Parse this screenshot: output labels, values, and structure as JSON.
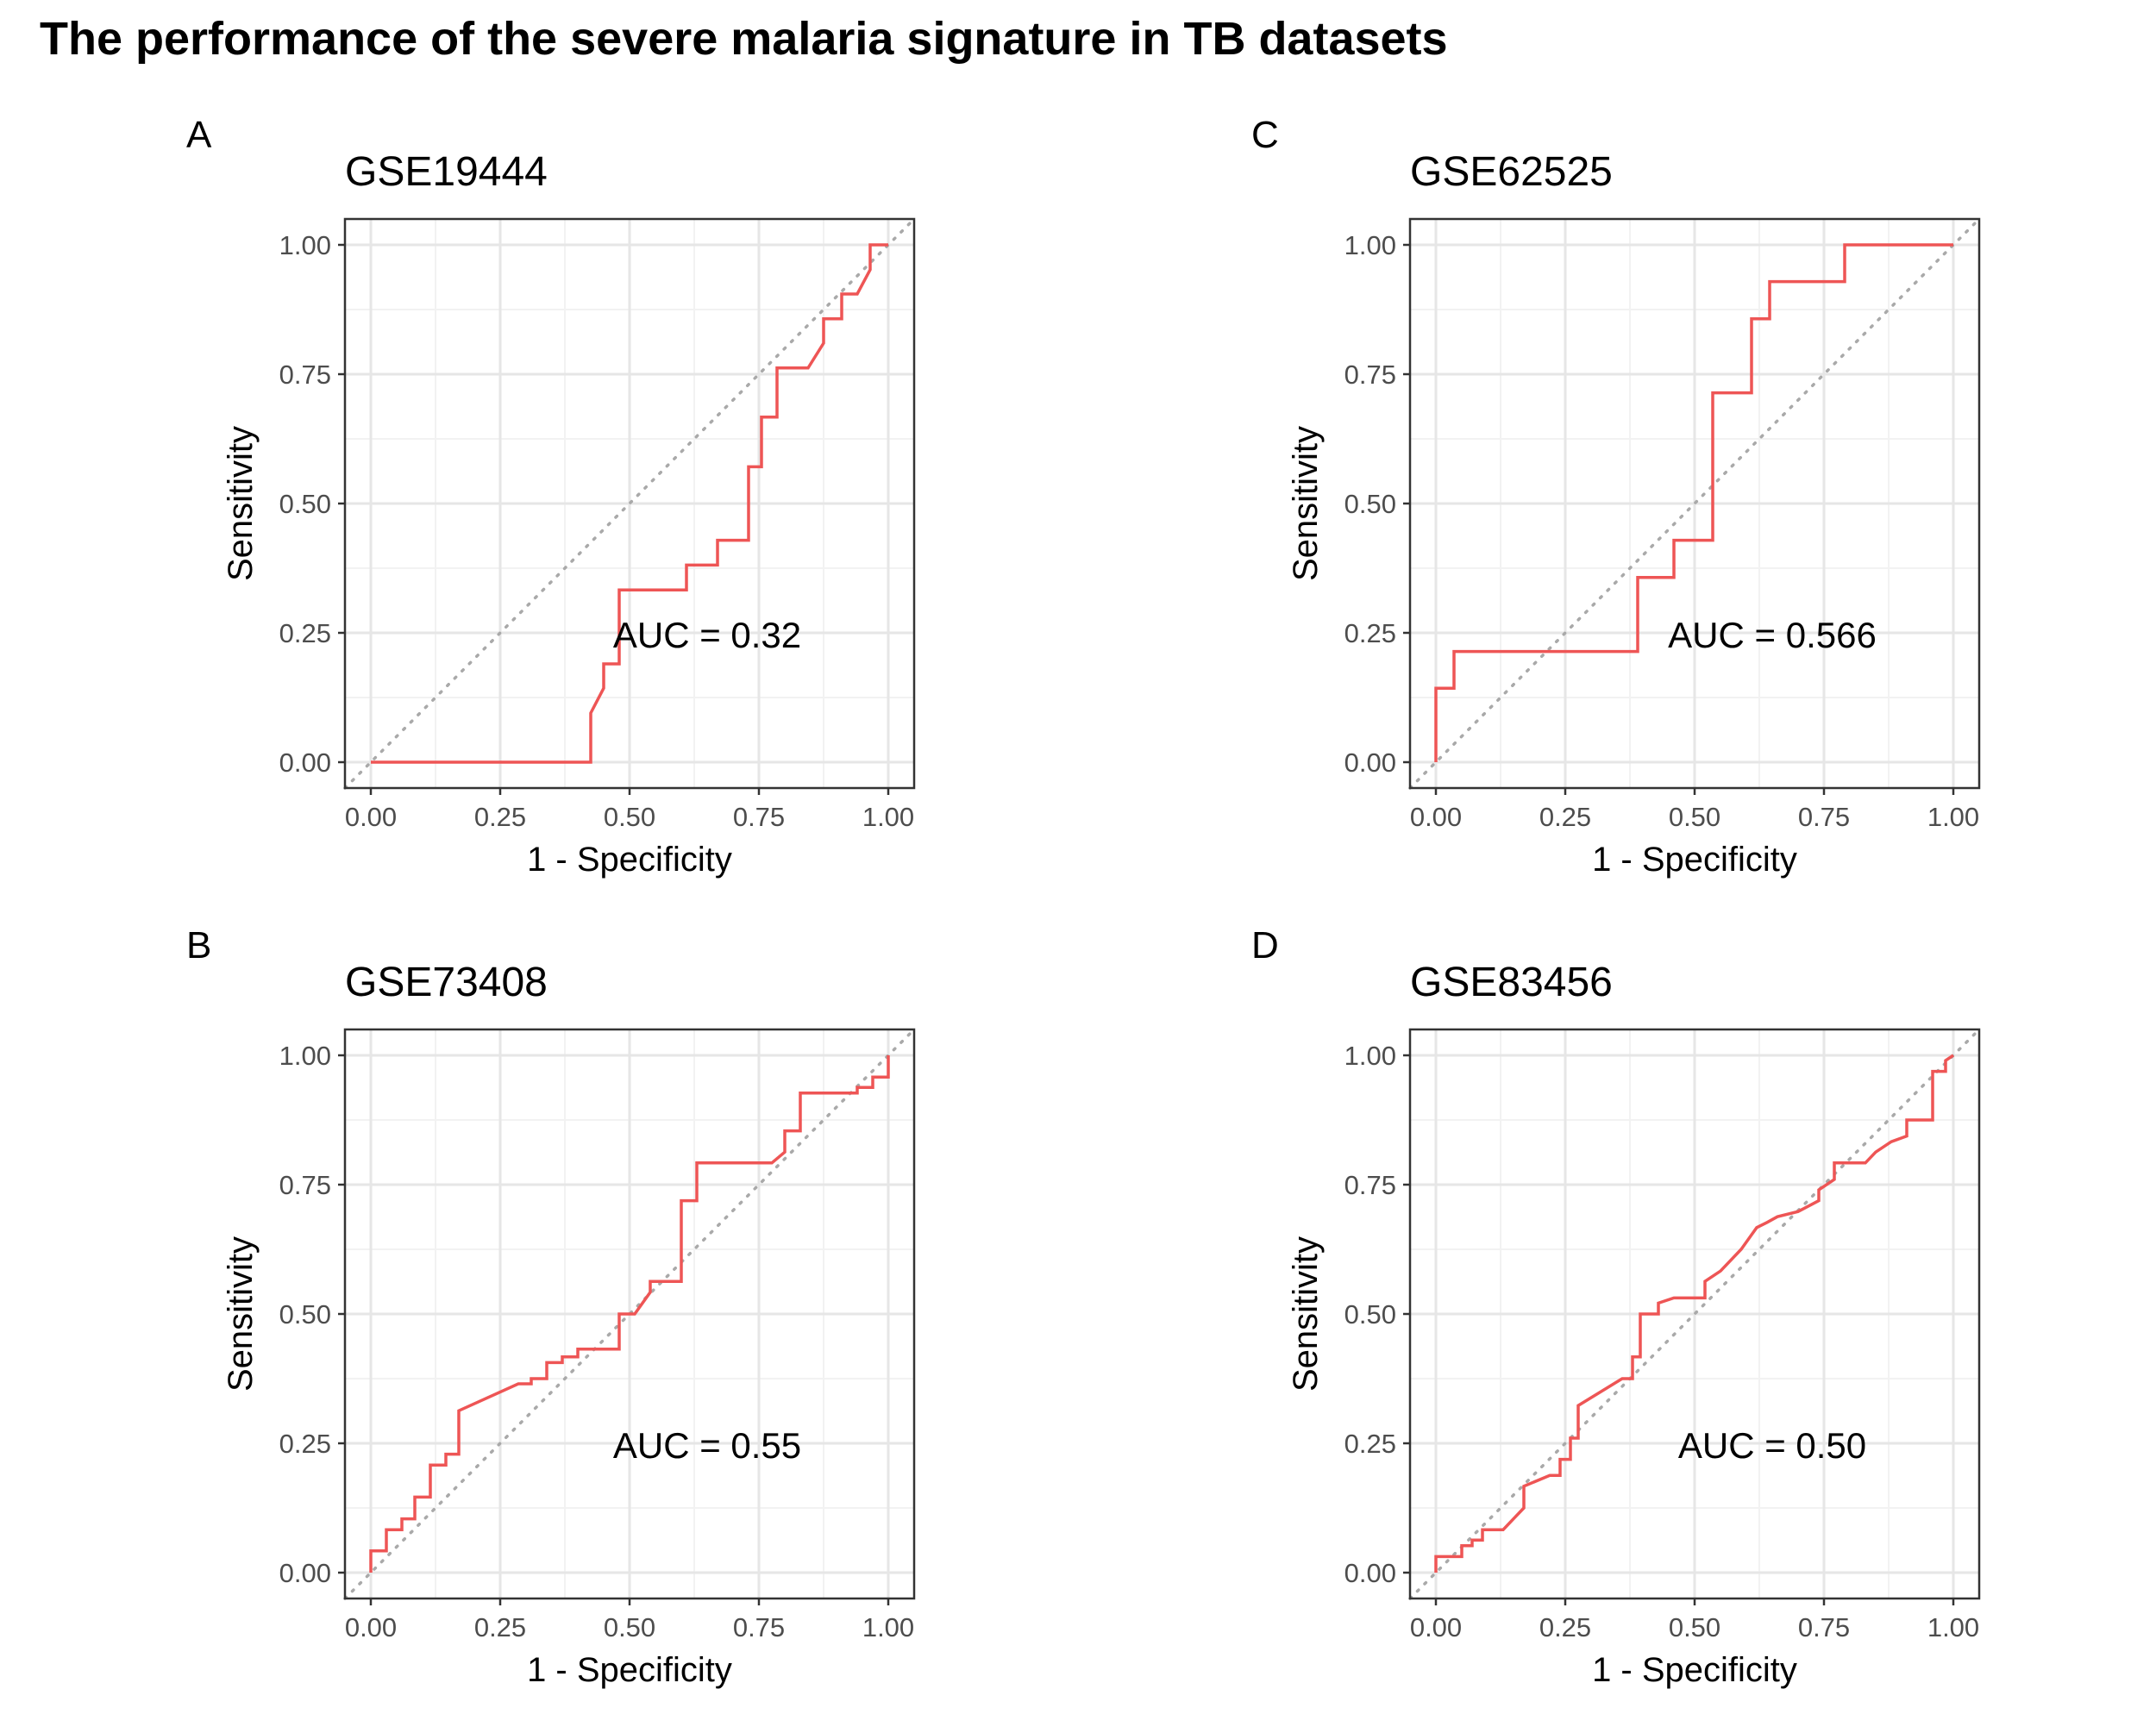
{
  "figure": {
    "title": "The performance of the severe malaria signature in TB datasets"
  },
  "colors": {
    "roc_line": "#ee5555",
    "diagonal": "#a9a9a9",
    "grid_major": "#e6e6e6",
    "grid_minor": "#f2f2f2",
    "panel_border": "#333333"
  },
  "chart_data": [
    {
      "panel": "A",
      "title": "GSE19444",
      "type": "line",
      "xlabel": "1 - Specificity",
      "ylabel": "Sensitivity",
      "xlim": [
        0,
        1
      ],
      "ylim": [
        0,
        1
      ],
      "xticks": [
        "0.00",
        "0.25",
        "0.50",
        "0.75",
        "1.00"
      ],
      "yticks": [
        "0.00",
        "0.25",
        "0.50",
        "0.75",
        "1.00"
      ],
      "grid": true,
      "reference_line": "diagonal",
      "annotation": "AUC = 0.32",
      "points": [
        [
          0,
          0
        ],
        [
          0.425,
          0
        ],
        [
          0.425,
          0.095
        ],
        [
          0.45,
          0.143
        ],
        [
          0.45,
          0.19
        ],
        [
          0.48,
          0.19
        ],
        [
          0.48,
          0.333
        ],
        [
          0.61,
          0.333
        ],
        [
          0.61,
          0.381
        ],
        [
          0.67,
          0.381
        ],
        [
          0.67,
          0.429
        ],
        [
          0.73,
          0.429
        ],
        [
          0.73,
          0.571
        ],
        [
          0.755,
          0.571
        ],
        [
          0.755,
          0.667
        ],
        [
          0.785,
          0.667
        ],
        [
          0.785,
          0.762
        ],
        [
          0.845,
          0.762
        ],
        [
          0.875,
          0.81
        ],
        [
          0.875,
          0.857
        ],
        [
          0.91,
          0.857
        ],
        [
          0.91,
          0.905
        ],
        [
          0.94,
          0.905
        ],
        [
          0.965,
          0.952
        ],
        [
          0.965,
          1.0
        ],
        [
          1.0,
          1.0
        ]
      ]
    },
    {
      "panel": "C",
      "title": "GSE62525",
      "type": "line",
      "xlabel": "1 - Specificity",
      "ylabel": "Sensitivity",
      "xlim": [
        0,
        1
      ],
      "ylim": [
        0,
        1
      ],
      "xticks": [
        "0.00",
        "0.25",
        "0.50",
        "0.75",
        "1.00"
      ],
      "yticks": [
        "0.00",
        "0.25",
        "0.50",
        "0.75",
        "1.00"
      ],
      "grid": true,
      "reference_line": "diagonal",
      "annotation": "AUC = 0.566",
      "points": [
        [
          0,
          0
        ],
        [
          0,
          0.143
        ],
        [
          0.035,
          0.143
        ],
        [
          0.035,
          0.214
        ],
        [
          0.39,
          0.214
        ],
        [
          0.39,
          0.357
        ],
        [
          0.46,
          0.357
        ],
        [
          0.46,
          0.429
        ],
        [
          0.535,
          0.429
        ],
        [
          0.535,
          0.714
        ],
        [
          0.61,
          0.714
        ],
        [
          0.61,
          0.857
        ],
        [
          0.645,
          0.857
        ],
        [
          0.645,
          0.929
        ],
        [
          0.79,
          0.929
        ],
        [
          0.79,
          1.0
        ],
        [
          1.0,
          1.0
        ]
      ]
    },
    {
      "panel": "B",
      "title": "GSE73408",
      "type": "line",
      "xlabel": "1 - Specificity",
      "ylabel": "Sensitivity",
      "xlim": [
        0,
        1
      ],
      "ylim": [
        0,
        1
      ],
      "xticks": [
        "0.00",
        "0.25",
        "0.50",
        "0.75",
        "1.00"
      ],
      "yticks": [
        "0.00",
        "0.25",
        "0.50",
        "0.75",
        "1.00"
      ],
      "grid": true,
      "reference_line": "diagonal",
      "annotation": "AUC = 0.55",
      "points": [
        [
          0,
          0
        ],
        [
          0,
          0.042
        ],
        [
          0.03,
          0.042
        ],
        [
          0.03,
          0.083
        ],
        [
          0.06,
          0.083
        ],
        [
          0.06,
          0.104
        ],
        [
          0.085,
          0.104
        ],
        [
          0.085,
          0.146
        ],
        [
          0.115,
          0.146
        ],
        [
          0.115,
          0.208
        ],
        [
          0.145,
          0.208
        ],
        [
          0.145,
          0.229
        ],
        [
          0.17,
          0.229
        ],
        [
          0.17,
          0.313
        ],
        [
          0.285,
          0.365
        ],
        [
          0.31,
          0.365
        ],
        [
          0.31,
          0.375
        ],
        [
          0.34,
          0.375
        ],
        [
          0.34,
          0.406
        ],
        [
          0.37,
          0.406
        ],
        [
          0.37,
          0.417
        ],
        [
          0.4,
          0.417
        ],
        [
          0.4,
          0.432
        ],
        [
          0.48,
          0.432
        ],
        [
          0.48,
          0.5
        ],
        [
          0.51,
          0.5
        ],
        [
          0.54,
          0.542
        ],
        [
          0.54,
          0.563
        ],
        [
          0.6,
          0.563
        ],
        [
          0.6,
          0.719
        ],
        [
          0.63,
          0.719
        ],
        [
          0.63,
          0.792
        ],
        [
          0.775,
          0.792
        ],
        [
          0.8,
          0.813
        ],
        [
          0.8,
          0.854
        ],
        [
          0.83,
          0.854
        ],
        [
          0.83,
          0.927
        ],
        [
          0.94,
          0.927
        ],
        [
          0.94,
          0.938
        ],
        [
          0.97,
          0.938
        ],
        [
          0.97,
          0.958
        ],
        [
          1.0,
          0.958
        ],
        [
          1.0,
          1.0
        ]
      ]
    },
    {
      "panel": "D",
      "title": "GSE83456",
      "type": "line",
      "xlabel": "1 - Specificity",
      "ylabel": "Sensitivity",
      "xlim": [
        0,
        1
      ],
      "ylim": [
        0,
        1
      ],
      "xticks": [
        "0.00",
        "0.25",
        "0.50",
        "0.75",
        "1.00"
      ],
      "yticks": [
        "0.00",
        "0.25",
        "0.50",
        "0.75",
        "1.00"
      ],
      "grid": true,
      "reference_line": "diagonal",
      "annotation": "AUC = 0.50",
      "points": [
        [
          0,
          0
        ],
        [
          0,
          0.031
        ],
        [
          0.05,
          0.031
        ],
        [
          0.05,
          0.052
        ],
        [
          0.07,
          0.052
        ],
        [
          0.07,
          0.063
        ],
        [
          0.09,
          0.063
        ],
        [
          0.09,
          0.083
        ],
        [
          0.13,
          0.083
        ],
        [
          0.15,
          0.104
        ],
        [
          0.17,
          0.125
        ],
        [
          0.17,
          0.167
        ],
        [
          0.22,
          0.188
        ],
        [
          0.24,
          0.188
        ],
        [
          0.24,
          0.219
        ],
        [
          0.26,
          0.219
        ],
        [
          0.26,
          0.26
        ],
        [
          0.275,
          0.26
        ],
        [
          0.275,
          0.323
        ],
        [
          0.36,
          0.375
        ],
        [
          0.38,
          0.375
        ],
        [
          0.38,
          0.417
        ],
        [
          0.395,
          0.417
        ],
        [
          0.395,
          0.5
        ],
        [
          0.43,
          0.5
        ],
        [
          0.43,
          0.521
        ],
        [
          0.46,
          0.531
        ],
        [
          0.52,
          0.531
        ],
        [
          0.52,
          0.563
        ],
        [
          0.55,
          0.583
        ],
        [
          0.59,
          0.625
        ],
        [
          0.62,
          0.667
        ],
        [
          0.64,
          0.677
        ],
        [
          0.66,
          0.688
        ],
        [
          0.7,
          0.698
        ],
        [
          0.74,
          0.719
        ],
        [
          0.74,
          0.74
        ],
        [
          0.77,
          0.76
        ],
        [
          0.77,
          0.792
        ],
        [
          0.83,
          0.792
        ],
        [
          0.85,
          0.813
        ],
        [
          0.88,
          0.833
        ],
        [
          0.91,
          0.844
        ],
        [
          0.91,
          0.875
        ],
        [
          0.96,
          0.875
        ],
        [
          0.96,
          0.969
        ],
        [
          0.985,
          0.969
        ],
        [
          0.985,
          0.99
        ],
        [
          1.0,
          1.0
        ]
      ]
    }
  ]
}
